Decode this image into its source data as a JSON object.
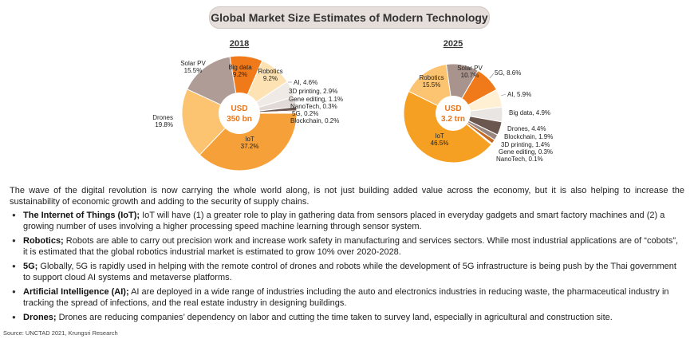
{
  "page": {
    "title": "Global Market Size Estimates of Modern Technology",
    "source": "Source: UNCTAD 2021, Krungsri Research"
  },
  "colors": {
    "orange_dark": "#f07a1a",
    "orange_light": "#f6a03a",
    "peach": "#fbd5a0",
    "taupe": "#a8938d",
    "cream": "#fff0d4",
    "white_gray": "#e9e5e2",
    "brown": "#6b5750",
    "center_text": "#e8751a"
  },
  "chart_data": [
    {
      "type": "pie",
      "title": "2018",
      "center_label": [
        "USD",
        "350 bn"
      ],
      "slices": [
        {
          "name": "IoT",
          "value": 37.2,
          "label": "37.2%",
          "color": "#f6a03a"
        },
        {
          "name": "Drones",
          "value": 19.8,
          "label": "19.8%",
          "color": "#fcc371"
        },
        {
          "name": "Solar PV",
          "value": 15.5,
          "label": "15.5%",
          "color": "#b09c97"
        },
        {
          "name": "Big data",
          "value": 9.2,
          "label": "9.2%",
          "color": "#f07a1a"
        },
        {
          "name": "Robotics",
          "value": 9.2,
          "label": "9.2%",
          "color": "#fde3b4"
        },
        {
          "name": "AI",
          "value": 4.6,
          "label": "4.6%",
          "color": "#efeae6"
        },
        {
          "name": "3D printing",
          "value": 2.9,
          "label": "2.9%",
          "color": "#e1dad6"
        },
        {
          "name": "Gene editing",
          "value": 1.1,
          "label": "1.1%",
          "color": "#6b5750"
        },
        {
          "name": "NanoTech",
          "value": 0.3,
          "label": "0.3%",
          "color": "#8b7a74"
        },
        {
          "name": "5G",
          "value": 0.2,
          "label": "0.2%",
          "color": "#cc6a1e"
        },
        {
          "name": "Blockchain",
          "value": 0.2,
          "label": "0.2%",
          "color": "#4a3a34"
        }
      ]
    },
    {
      "type": "pie",
      "title": "2025",
      "center_label": [
        "USD",
        "3.2 trn"
      ],
      "slices": [
        {
          "name": "Solar PV",
          "value": 10.7,
          "label": "10.7%",
          "color": "#a8938d"
        },
        {
          "name": "5G",
          "value": 8.6,
          "label": "8.6%",
          "color": "#f07a1a"
        },
        {
          "name": "AI",
          "value": 5.9,
          "label": "5.9%",
          "color": "#fff0d4"
        },
        {
          "name": "Big data",
          "value": 4.9,
          "label": "4.9%",
          "color": "#e9e5e2"
        },
        {
          "name": "Drones",
          "value": 4.4,
          "label": "4.4%",
          "color": "#6b5750"
        },
        {
          "name": "Blockchain",
          "value": 1.9,
          "label": "1.9%",
          "color": "#9a8680"
        },
        {
          "name": "3D printing",
          "value": 1.4,
          "label": "1.4%",
          "color": "#c46a22"
        },
        {
          "name": "Gene editing",
          "value": 0.3,
          "label": "0.3%",
          "color": "#f6a03a"
        },
        {
          "name": "NanoTech",
          "value": 0.1,
          "label": "0.1%",
          "color": "#4a3a34"
        },
        {
          "name": "IoT",
          "value": 46.5,
          "label": "46.5%",
          "color": "#f5a023"
        },
        {
          "name": "Robotics",
          "value": 15.5,
          "label": "15.5%",
          "color": "#fcc371"
        }
      ]
    }
  ],
  "text": {
    "intro": "The wave of the digital revolution is now carrying the whole world along, is not just building added value across the economy, but it is also helping to increase the sustainability of economic growth and adding to the security of supply chains.",
    "bullets": [
      {
        "term": "The Internet of Things (IoT);",
        "body": " IoT will have (1) a greater role to play in gathering data from sensors placed in everyday gadgets and smart factory machines and (2) a growing number of uses involving a higher processing speed machine learning through sensor system."
      },
      {
        "term": "Robotics;",
        "body": " Robots are able to carry out precision work and increase work safety in manufacturing and services sectors. While most industrial applications are of “cobots”, it is estimated that the global robotics industrial market is estimated to grow 10% over 2020-2028."
      },
      {
        "term": "5G;",
        "body": " Globally, 5G is rapidly used in helping with the remote control of drones and robots while the development of 5G infrastructure is being push by the Thai government to support cloud AI systems and metaverse platforms."
      },
      {
        "term": "Artificial Intelligence (AI);",
        "body": " AI are deployed in a wide range of industries including the auto and electronics industries in reducing waste, the pharmaceutical industry in tracking the spread of infections, and the real estate industry in designing buildings."
      },
      {
        "term": "Drones;",
        "body": " Drones are reducing companies’ dependency on labor and cutting the time taken to survey land, especially in agricultural and construction site."
      }
    ]
  }
}
